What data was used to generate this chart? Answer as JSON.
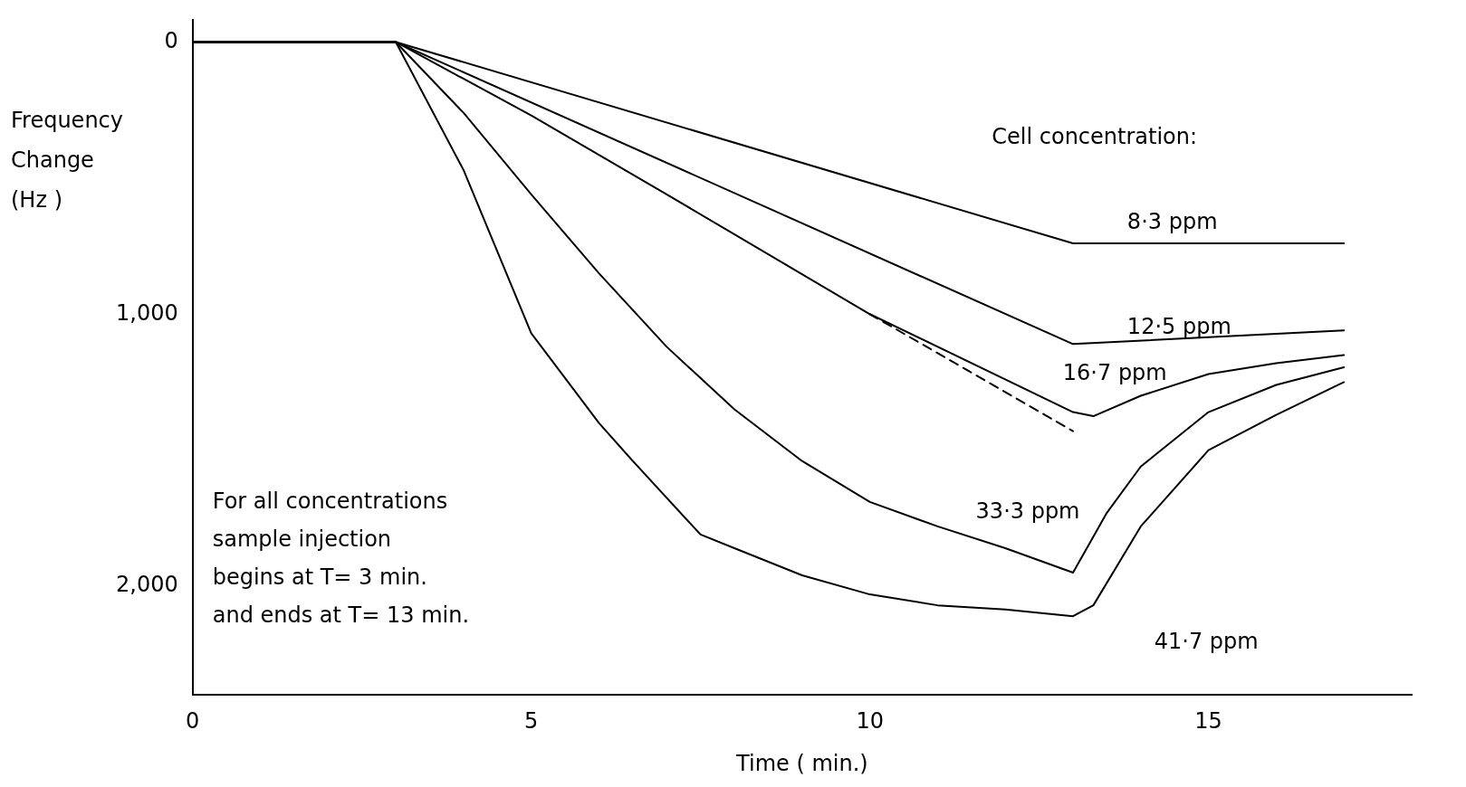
{
  "chart_data": {
    "type": "line",
    "xlabel": "Time ( min.)",
    "ylabel": "Frequency Change (Hz )",
    "legend_title": "Cell concentration:",
    "xlim": [
      0,
      18
    ],
    "xticks": [
      0,
      5,
      10,
      15
    ],
    "ylim": [
      2400,
      -80
    ],
    "yticks": [
      0,
      {
        "value": 1000,
        "label": "1,000"
      },
      {
        "value": 2000,
        "label": "2,000"
      }
    ],
    "grid": false,
    "legend": false,
    "marker": "none",
    "line_style": "solid",
    "series": [
      {
        "name": "8·3 ppm",
        "color": "#000000",
        "x": [
          0,
          3,
          13,
          17
        ],
        "values": [
          0,
          0,
          740,
          740
        ]
      },
      {
        "name": "12·5 ppm",
        "color": "#000000",
        "x": [
          0,
          3,
          13,
          17
        ],
        "values": [
          0,
          0,
          1110,
          1060
        ]
      },
      {
        "name": "16·7 ppm",
        "color": "#000000",
        "x": [
          0,
          3,
          5,
          7,
          10,
          13,
          13.3,
          14,
          15,
          16,
          17
        ],
        "values": [
          0,
          0,
          270,
          560,
          1000,
          1360,
          1375,
          1300,
          1220,
          1180,
          1150
        ]
      },
      {
        "name": "33·3 ppm",
        "color": "#000000",
        "x": [
          0,
          3,
          4,
          5,
          6,
          7,
          8,
          9,
          10,
          11,
          12,
          13,
          13.5,
          14,
          15,
          16,
          17
        ],
        "values": [
          0,
          0,
          260,
          560,
          850,
          1120,
          1350,
          1540,
          1690,
          1780,
          1860,
          1950,
          1730,
          1560,
          1360,
          1260,
          1195
        ]
      },
      {
        "name": "41·7 ppm",
        "color": "#000000",
        "x": [
          0,
          3,
          4,
          5,
          6,
          6.5,
          7.5,
          8,
          9,
          10,
          11,
          12,
          13,
          13.3,
          14,
          15,
          16,
          17
        ],
        "values": [
          0,
          0,
          470,
          1070,
          1400,
          1540,
          1810,
          1860,
          1960,
          2030,
          2070,
          2085,
          2110,
          2070,
          1780,
          1500,
          1370,
          1250
        ]
      },
      {
        "type": "line",
        "line_style": "dashed",
        "color": "#000000",
        "x": [
          10,
          13
        ],
        "values": [
          1000,
          1430
        ]
      }
    ],
    "annotations": [
      "For all concentrations sample injection begins at T= 3 min. and ends at T= 13 min."
    ]
  }
}
